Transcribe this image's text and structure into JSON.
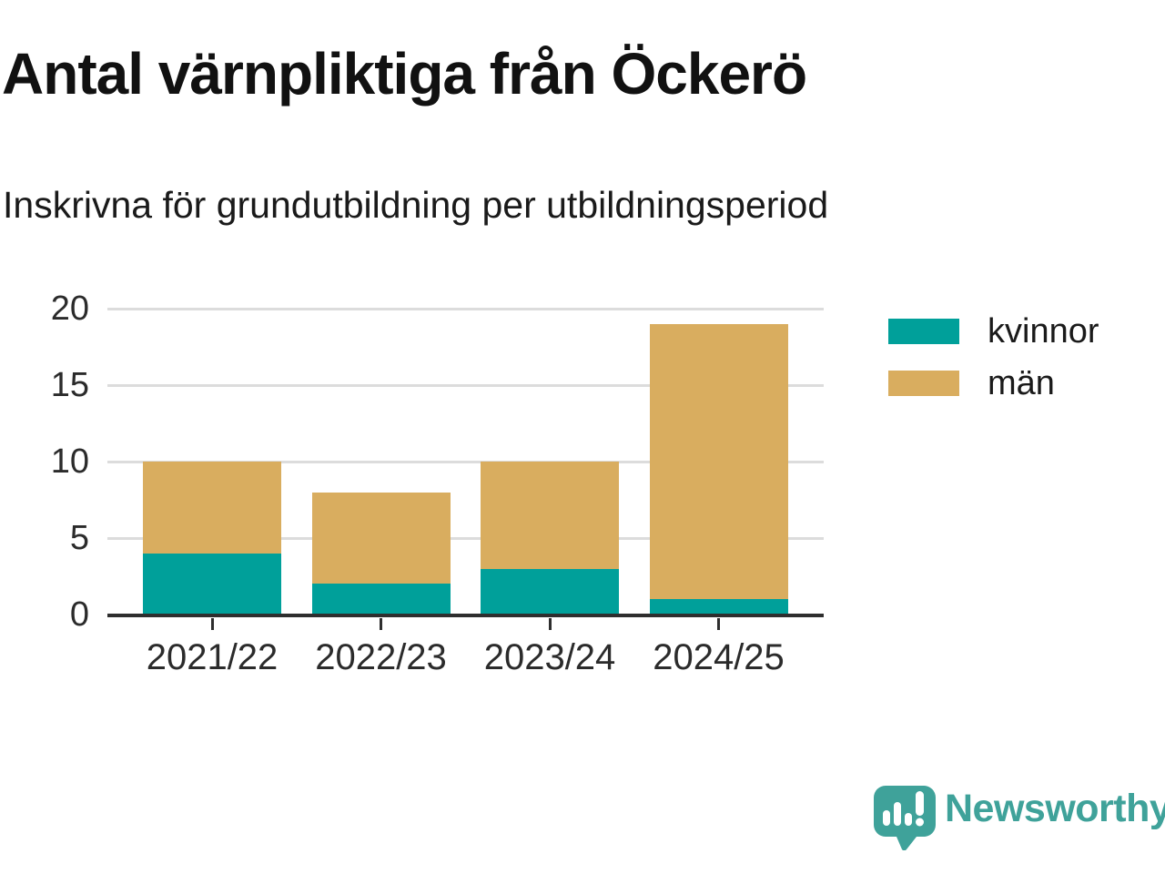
{
  "title": "Antal värnpliktiga från Öckerö",
  "subtitle": "Inskrivna för grundutbildning per utbildningsperiod",
  "chart_data": {
    "type": "bar",
    "stacked": true,
    "categories": [
      "2021/22",
      "2022/23",
      "2023/24",
      "2024/25"
    ],
    "series": [
      {
        "name": "kvinnor",
        "color": "#00a09a",
        "values": [
          4,
          2,
          3,
          1
        ]
      },
      {
        "name": "män",
        "color": "#d9ad5f",
        "values": [
          6,
          6,
          7,
          18
        ]
      }
    ],
    "totals": [
      10,
      8,
      10,
      19
    ],
    "title": "Antal värnpliktiga från Öckerö",
    "subtitle": "Inskrivna för grundutbildning per utbildningsperiod",
    "xlabel": "",
    "ylabel": "",
    "ylim": [
      0,
      20
    ],
    "yticks": [
      0,
      5,
      10,
      15,
      20
    ],
    "grid": true,
    "legend_position": "right"
  },
  "legend": {
    "items": [
      {
        "label": "kvinnor",
        "color": "#00a09a"
      },
      {
        "label": "män",
        "color": "#d9ad5f"
      }
    ]
  },
  "branding": {
    "name": "Newsworthy",
    "color": "#3fa29a",
    "icon": "newsworthy-speech-bubble-chart-icon"
  },
  "colors": {
    "kvinnor": "#00a09a",
    "man": "#d9ad5f",
    "gridline": "#dcdcdc",
    "axis": "#2e2e2e",
    "text": "#1a1a1a"
  }
}
